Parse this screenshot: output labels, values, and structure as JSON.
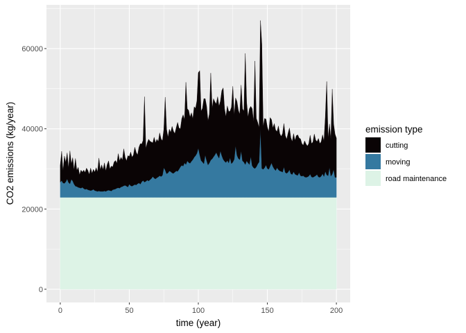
{
  "chart_data": {
    "type": "area",
    "stacked": true,
    "xlabel": "time (year)",
    "ylabel": "CO2 emissions (kg/year)",
    "xlim": [
      -10,
      210
    ],
    "ylim": [
      -3300,
      70900
    ],
    "x_ticks": [
      0,
      50,
      100,
      150,
      200
    ],
    "y_ticks": [
      0,
      20000,
      40000,
      60000
    ],
    "y_tick_labels": [
      "0",
      "20000",
      "40000",
      "60000"
    ],
    "grid": true,
    "legend": {
      "title": "emission type",
      "position": "right"
    },
    "x_start": 0,
    "x_step": 1,
    "series": [
      {
        "name": "road maintenance",
        "color": "#ddf3e6",
        "constant": 22900
      },
      {
        "name": "moving",
        "color": "#3579a0",
        "values": [
          3800,
          4200,
          3600,
          3500,
          3900,
          4600,
          3700,
          3400,
          4500,
          4100,
          3300,
          2800,
          2700,
          2500,
          2400,
          2300,
          2500,
          2200,
          2000,
          2100,
          1900,
          1800,
          1700,
          1800,
          2000,
          1700,
          1600,
          1500,
          1600,
          1500,
          1500,
          1500,
          1600,
          1500,
          1700,
          1800,
          1700,
          1600,
          1900,
          2000,
          2100,
          2300,
          2400,
          2300,
          2600,
          2700,
          2900,
          3000,
          2800,
          2600,
          3300,
          2900,
          2800,
          3000,
          3200,
          3100,
          3400,
          3600,
          3300,
          3900,
          4200,
          3800,
          4000,
          4300,
          4100,
          4400,
          4700,
          5200,
          4800,
          4600,
          4900,
          5100,
          5400,
          5200,
          5500,
          7400,
          6800,
          5900,
          6100,
          6600,
          6400,
          6100,
          6000,
          6300,
          6600,
          6500,
          7000,
          7600,
          8000,
          7800,
          8600,
          8200,
          9100,
          8700,
          8500,
          9000,
          9400,
          10000,
          10400,
          11000,
          12300,
          10600,
          9200,
          8800,
          8400,
          10600,
          9200,
          8100,
          8600,
          9300,
          9600,
          10100,
          10600,
          11200,
          10400,
          9800,
          11600,
          10400,
          9500,
          9000,
          8700,
          9200,
          8600,
          9900,
          8400,
          8800,
          9500,
          12900,
          10500,
          9700,
          9400,
          11600,
          9100,
          8800,
          8200,
          9100,
          8600,
          8200,
          10200,
          7900,
          7400,
          7200,
          7600,
          8300,
          8800,
          17100,
          7200,
          7000,
          7400,
          8100,
          7200,
          7000,
          7800,
          8600,
          7700,
          7100,
          6700,
          7400,
          6900,
          6600,
          6500,
          6300,
          7600,
          6200,
          6000,
          6300,
          6900,
          5900,
          5700,
          6400,
          5800,
          5600,
          5500,
          6200,
          5400,
          5300,
          5400,
          5100,
          5000,
          5100,
          5300,
          5800,
          5100,
          5000,
          5200,
          5400,
          5700,
          5100,
          5000,
          5300,
          5900,
          5200,
          6500,
          5600,
          5400,
          7500,
          5300,
          5800,
          7000,
          5000,
          5000
        ]
      },
      {
        "name": "cutting",
        "color": "#0a0405",
        "values": [
          4200,
          7300,
          3000,
          6800,
          4800,
          6500,
          3600,
          8200,
          3800,
          5800,
          3500,
          6900,
          4000,
          5000,
          3200,
          4500,
          3800,
          4600,
          4200,
          5200,
          4800,
          3900,
          5600,
          4200,
          5000,
          4600,
          5800,
          4800,
          8200,
          5400,
          6600,
          5400,
          7000,
          5100,
          6500,
          7300,
          5400,
          6200,
          5700,
          6800,
          7100,
          6200,
          8500,
          6800,
          7400,
          6600,
          9200,
          7000,
          6300,
          7800,
          6900,
          8400,
          7200,
          7600,
          9300,
          8100,
          7200,
          8900,
          10100,
          9400,
          10000,
          21300,
          8200,
          9300,
          10400,
          9600,
          9100,
          8400,
          10200,
          9000,
          9600,
          8800,
          10700,
          9400,
          8600,
          9500,
          18200,
          11100,
          8900,
          10400,
          9800,
          11600,
          10500,
          9600,
          10800,
          12200,
          10300,
          9500,
          11600,
          12800,
          10800,
          20500,
          13000,
          13000,
          11500,
          12100,
          10200,
          12600,
          11800,
          13100,
          18800,
          21000,
          12300,
          13400,
          16200,
          14000,
          13500,
          11000,
          12200,
          21700,
          12600,
          14500,
          13200,
          12100,
          14700,
          12900,
          12400,
          16200,
          17800,
          13100,
          11400,
          13600,
          12800,
          11600,
          14100,
          18900,
          11000,
          11900,
          13400,
          12000,
          11300,
          16400,
          13000,
          12700,
          27700,
          14600,
          11400,
          13900,
          12500,
          14200,
          11500,
          26800,
          12100,
          10400,
          8600,
          27000,
          31000,
          10600,
          12300,
          11400,
          10300,
          9400,
          12100,
          10800,
          9600,
          11300,
          10100,
          9000,
          10900,
          9300,
          8700,
          9600,
          10800,
          9200,
          8500,
          9700,
          10400,
          9000,
          8200,
          9500,
          8400,
          9800,
          10100,
          8600,
          9200,
          8100,
          7600,
          9000,
          8300,
          7700,
          8100,
          9700,
          8300,
          8800,
          10600,
          8900,
          8200,
          9600,
          8400,
          8600,
          9700,
          8800,
          13600,
          23300,
          9300,
          10800,
          9200,
          21200,
          11300,
          10800,
          9800
        ]
      }
    ]
  }
}
